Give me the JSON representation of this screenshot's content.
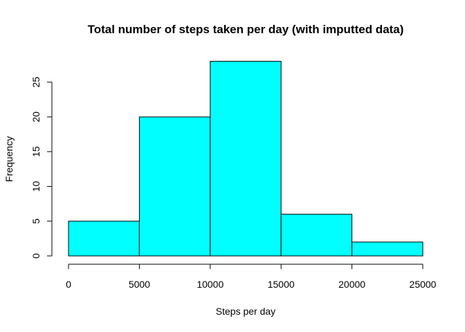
{
  "chart_data": {
    "type": "bar",
    "title": "Total number of steps taken per day (with imputted data)",
    "xlabel": "Steps per day",
    "ylabel": "Frequency",
    "bins": [
      {
        "from": 0,
        "to": 5000,
        "count": 5
      },
      {
        "from": 5000,
        "to": 10000,
        "count": 20
      },
      {
        "from": 10000,
        "to": 15000,
        "count": 28
      },
      {
        "from": 15000,
        "to": 20000,
        "count": 6
      },
      {
        "from": 20000,
        "to": 25000,
        "count": 2
      }
    ],
    "xlim": [
      0,
      25000
    ],
    "ylim": [
      0,
      28
    ],
    "x_ticks": [
      0,
      5000,
      10000,
      15000,
      20000,
      25000
    ],
    "y_ticks": [
      0,
      5,
      10,
      15,
      20,
      25
    ],
    "bar_color": "#00ffff",
    "grid": false,
    "legend": "none"
  }
}
